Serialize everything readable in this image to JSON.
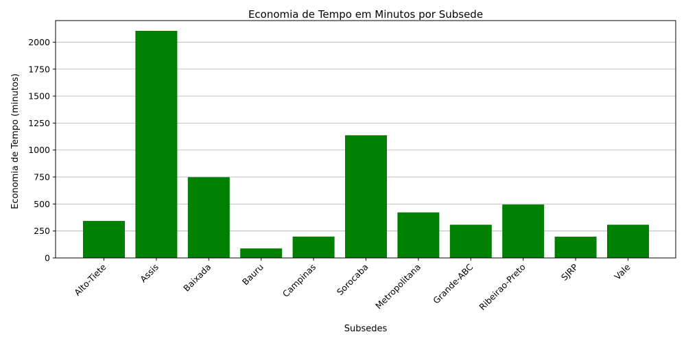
{
  "chart_data": {
    "type": "bar",
    "title": "Economia de Tempo em Minutos por Subsede",
    "xlabel": "Subsedes",
    "ylabel": "Economia de Tempo (minutos)",
    "categories": [
      "Alto-Tiete",
      "Assis",
      "Baixada",
      "Bauru",
      "Campinas",
      "Sorocaba",
      "Metropolitana",
      "Grande-ABC",
      "Ribeirao-Preto",
      "SJRP",
      "Vale"
    ],
    "values": [
      343,
      2105,
      748,
      88,
      198,
      1137,
      422,
      308,
      495,
      197,
      308
    ],
    "ylim": [
      0,
      2200
    ],
    "yticks": [
      0,
      250,
      500,
      750,
      1000,
      1250,
      1500,
      1750,
      2000
    ],
    "grid": "horizontal",
    "bar_color": "#008000",
    "grid_color": "#b0b0b0"
  }
}
